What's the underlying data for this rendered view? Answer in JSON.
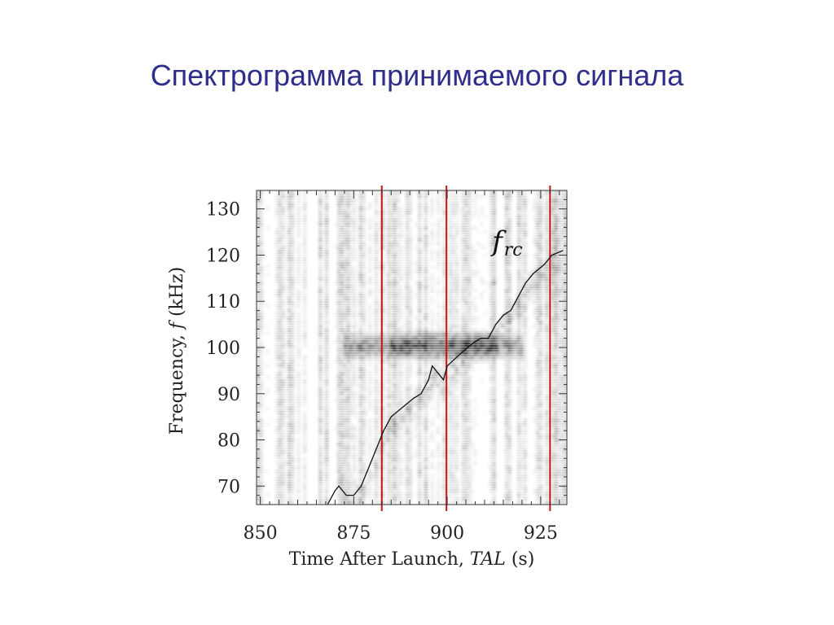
{
  "slide": {
    "title": "Спектрограмма принимаемого сигнала"
  },
  "colors": {
    "marker": "#cc1111",
    "curve": "#111111",
    "title": "#2e2e8a"
  },
  "chart_data": {
    "type": "heatmap",
    "title": "",
    "xlabel": {
      "text": "Time After Launch, ",
      "italic": "TAL",
      "suffix": " (s)"
    },
    "ylabel": {
      "text": "Frequency, ",
      "italic": "f",
      "suffix": " (kHz)"
    },
    "xlim": [
      849,
      932
    ],
    "ylim": [
      66,
      134
    ],
    "xticks": [
      850,
      875,
      900,
      925
    ],
    "yticks": [
      70,
      80,
      90,
      100,
      110,
      120,
      130
    ],
    "grid": false,
    "curve_label": {
      "main": "f",
      "sub": "rc",
      "x": 912,
      "y": 121
    },
    "curve_frc": {
      "x": [
        868,
        870,
        871,
        873,
        875,
        877,
        878,
        879,
        881,
        883,
        885,
        888,
        891,
        893,
        895,
        896,
        899,
        900,
        904,
        907,
        909,
        911,
        913,
        915,
        917,
        919,
        921,
        923,
        926,
        928,
        931
      ],
      "y": [
        66,
        69,
        70,
        68,
        68,
        70,
        72,
        74,
        78,
        82,
        85,
        87,
        89,
        90,
        93,
        96,
        93,
        96,
        99,
        101,
        102,
        102,
        105,
        107,
        108,
        111,
        114,
        116,
        118,
        120,
        121
      ]
    },
    "vertical_lines_TAL": [
      882.5,
      899.8,
      927.5
    ]
  }
}
